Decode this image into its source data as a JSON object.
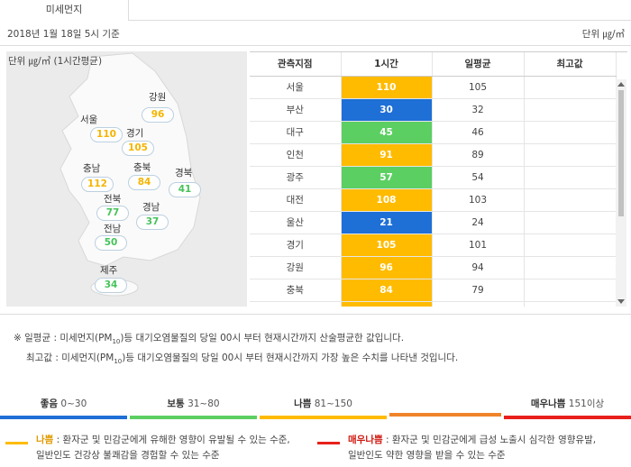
{
  "tab": {
    "label": "미세먼지"
  },
  "header": {
    "date": "2018년 1월 18일 5시 기준",
    "unit": "단위 ㎍/㎥"
  },
  "map": {
    "label": "단위 ㎍/㎥ (1시간평균)",
    "regions": [
      {
        "name": "강원",
        "value": "96",
        "color": "yellow"
      },
      {
        "name": "서울",
        "value": "110",
        "color": "yellow"
      },
      {
        "name": "경기",
        "value": "105",
        "color": "yellow"
      },
      {
        "name": "충남",
        "value": "112",
        "color": "yellow"
      },
      {
        "name": "충북",
        "value": "84",
        "color": "yellow"
      },
      {
        "name": "경북",
        "value": "41",
        "color": "green"
      },
      {
        "name": "전북",
        "value": "77",
        "color": "green"
      },
      {
        "name": "경남",
        "value": "37",
        "color": "green"
      },
      {
        "name": "전남",
        "value": "50",
        "color": "green"
      },
      {
        "name": "제주",
        "value": "34",
        "color": "green"
      }
    ]
  },
  "table": {
    "headers": [
      "관측지점",
      "1시간",
      "일평균",
      "최고값"
    ],
    "rows": [
      {
        "site": "서울",
        "hour": "110",
        "avg": "105",
        "max": "",
        "color": "#ffbb00"
      },
      {
        "site": "부산",
        "hour": "30",
        "avg": "32",
        "max": "",
        "color": "#1e6fd6"
      },
      {
        "site": "대구",
        "hour": "45",
        "avg": "46",
        "max": "",
        "color": "#5ccf63"
      },
      {
        "site": "인천",
        "hour": "91",
        "avg": "89",
        "max": "",
        "color": "#ffbb00"
      },
      {
        "site": "광주",
        "hour": "57",
        "avg": "54",
        "max": "",
        "color": "#5ccf63"
      },
      {
        "site": "대전",
        "hour": "108",
        "avg": "103",
        "max": "",
        "color": "#ffbb00"
      },
      {
        "site": "울산",
        "hour": "21",
        "avg": "24",
        "max": "",
        "color": "#1e6fd6"
      },
      {
        "site": "경기",
        "hour": "105",
        "avg": "101",
        "max": "",
        "color": "#ffbb00"
      },
      {
        "site": "강원",
        "hour": "96",
        "avg": "94",
        "max": "",
        "color": "#ffbb00"
      },
      {
        "site": "충북",
        "hour": "84",
        "avg": "79",
        "max": "",
        "color": "#ffbb00"
      },
      {
        "site": "",
        "hour": "",
        "avg": "",
        "max": "",
        "color": "#ffbb00"
      }
    ]
  },
  "notes": {
    "avg_pre": "※ 일평균 : 미세먼지(PM",
    "avg_sub": "10",
    "avg_post": ")등 대기오염물질의 당일 00시 부터 현재시간까지 산술평균한 값입니다.",
    "max_pre": "최고값 : 미세먼지(PM",
    "max_sub": "10",
    "max_post": ")등 대기오염물질의 당일 00시 부터 현재시간까지 가장 높은 수치를 나타낸 것입니다."
  },
  "legend": [
    {
      "label": "좋음",
      "range": "0~30",
      "color": "#1e6fd6"
    },
    {
      "label": "보통",
      "range": "31~80",
      "color": "#5ccf63"
    },
    {
      "label": "나쁨",
      "range": "81~150",
      "color": "#ffbb00"
    },
    {
      "label": "",
      "range": "",
      "color": "#f0832a"
    },
    {
      "label": "매우나쁨",
      "range": "151이상",
      "color": "#e8201c"
    }
  ],
  "descriptions": {
    "bad_title": "나쁨",
    "bad_line1": " : 환자군 및 민감군에게 유해한 영향이 유발될 수 있는 수준,",
    "bad_line2": "일반인도 건강상 불쾌감을 경험할 수 있는 수준",
    "very_bad_title": "매우나쁨",
    "very_bad_line1": " : 환자군 및 민감군에게 급성 노출시 심각한 영향유발,",
    "very_bad_line2": "일반인도 약한 영향을 받을 수 있는 수준",
    "bad_color": "#ffbb00",
    "very_bad_color": "#e8201c"
  }
}
